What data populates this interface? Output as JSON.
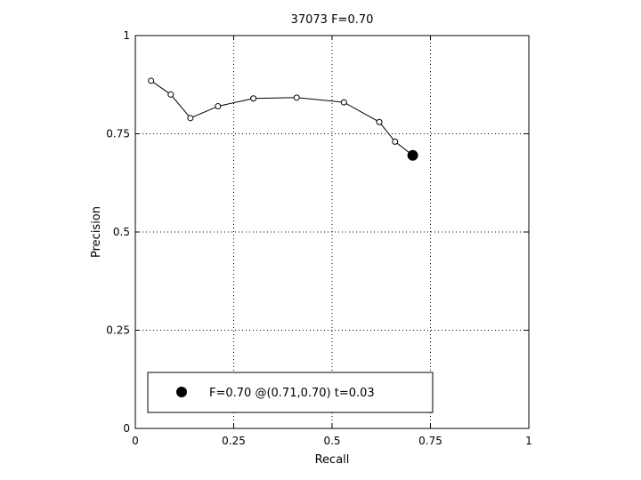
{
  "chart_data": {
    "type": "line",
    "title": "37073 F=0.70",
    "xlabel": "Recall",
    "ylabel": "Precision",
    "xlim": [
      0,
      1
    ],
    "ylim": [
      0,
      1
    ],
    "xticks": [
      0,
      0.25,
      0.5,
      0.75,
      1
    ],
    "yticks": [
      0,
      0.25,
      0.5,
      0.75,
      1
    ],
    "xtick_labels": [
      "0",
      "0.25",
      "0.5",
      "0.75",
      "1"
    ],
    "ytick_labels": [
      "0",
      "0.25",
      "0.5",
      "0.75",
      "1"
    ],
    "grid": true,
    "legend_position": "bottom",
    "series": [
      {
        "x": [
          0.04,
          0.09,
          0.14,
          0.21,
          0.3,
          0.41,
          0.53,
          0.62,
          0.66,
          0.705
        ],
        "y": [
          0.885,
          0.85,
          0.79,
          0.82,
          0.84,
          0.842,
          0.83,
          0.78,
          0.73,
          0.695
        ],
        "marker": "open-circle",
        "color": "#000000"
      }
    ],
    "best_point": {
      "x": 0.705,
      "y": 0.695,
      "marker": "filled-circle",
      "color": "#000000"
    },
    "legend": {
      "entries": [
        "F=0.70 @(0.71,0.70) t=0.03"
      ]
    }
  }
}
